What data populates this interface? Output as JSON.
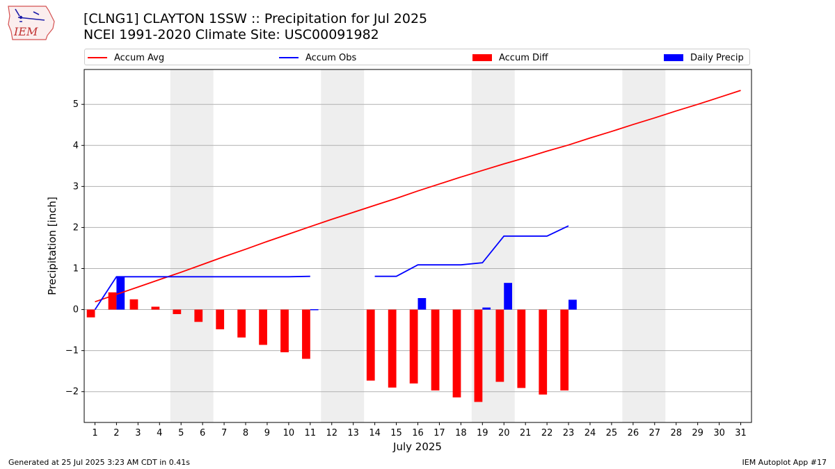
{
  "header": {
    "logo_text": "IEM",
    "title_line1": "[CLNG1] CLAYTON 1SSW :: Precipitation for Jul 2025",
    "title_line2": "NCEI 1991-2020 Climate Site: USC00091982"
  },
  "footer": {
    "left": "Generated at 25 Jul 2025 3:23 AM CDT in 0.41s",
    "right": "IEM Autoplot App #17"
  },
  "colors": {
    "accum_avg": "#ff0000",
    "accum_obs": "#0000ff",
    "accum_diff": "#ff0000",
    "daily_precip": "#0000ff",
    "weekend_shade": "#eeeeee",
    "grid": "#b0b0b0"
  },
  "chart_data": {
    "type": "bar",
    "xlabel": "July 2025",
    "ylabel": "Precipitation [inch]",
    "xlim": [
      0.5,
      31.5
    ],
    "ylim": [
      -2.75,
      5.85
    ],
    "yticks": [
      5,
      4,
      3,
      2,
      1,
      0,
      -1,
      -2
    ],
    "ytick_labels": [
      "5",
      "4",
      "3",
      "2",
      "1",
      "0",
      "−1",
      "−2"
    ],
    "grid": "horizontal",
    "legend": {
      "placement": "top",
      "entries": [
        "Accum Avg",
        "Accum Obs",
        "Accum Diff",
        "Daily Precip"
      ]
    },
    "x": [
      1,
      2,
      3,
      4,
      5,
      6,
      7,
      8,
      9,
      10,
      11,
      12,
      13,
      14,
      15,
      16,
      17,
      18,
      19,
      20,
      21,
      22,
      23,
      24,
      25,
      26,
      27,
      28,
      29,
      30,
      31
    ],
    "x_tick_labels": [
      "1",
      "2",
      "3",
      "4",
      "5",
      "6",
      "7",
      "8",
      "9",
      "10",
      "11",
      "12",
      "13",
      "14",
      "15",
      "16",
      "17",
      "18",
      "19",
      "20",
      "21",
      "22",
      "23",
      "24",
      "25",
      "26",
      "27",
      "28",
      "29",
      "30",
      "31"
    ],
    "weekend_days": [
      [
        5,
        6
      ],
      [
        12,
        13
      ],
      [
        19,
        20
      ],
      [
        26,
        27
      ]
    ],
    "series": [
      {
        "name": "Accum Avg",
        "type": "line",
        "values": [
          0.19,
          0.37,
          0.55,
          0.73,
          0.91,
          1.1,
          1.29,
          1.47,
          1.66,
          1.84,
          2.02,
          2.2,
          2.37,
          2.54,
          2.71,
          2.89,
          3.06,
          3.23,
          3.39,
          3.55,
          3.7,
          3.86,
          4.01,
          4.18,
          4.34,
          4.51,
          4.67,
          4.84,
          5.0,
          5.17,
          5.34
        ]
      },
      {
        "name": "Accum Obs",
        "type": "line",
        "values": [
          0.0,
          0.8,
          0.8,
          0.8,
          0.8,
          0.8,
          0.8,
          0.8,
          0.8,
          0.8,
          0.81,
          null,
          null,
          0.81,
          0.81,
          1.09,
          1.09,
          1.09,
          1.14,
          1.79,
          1.79,
          1.79,
          2.04,
          null,
          null,
          null,
          null,
          null,
          null,
          null,
          null
        ]
      },
      {
        "name": "Accum Diff",
        "type": "bar",
        "values": [
          -0.19,
          0.42,
          0.25,
          0.07,
          -0.11,
          -0.3,
          -0.48,
          -0.68,
          -0.86,
          -1.04,
          -1.2,
          null,
          null,
          -1.73,
          -1.9,
          -1.8,
          -1.97,
          -2.14,
          -2.25,
          -1.76,
          -1.91,
          -2.07,
          -1.97,
          null,
          null,
          null,
          null,
          null,
          null,
          null,
          null
        ]
      },
      {
        "name": "Daily Precip",
        "type": "bar",
        "values": [
          0,
          0.8,
          0,
          0,
          0,
          0,
          0,
          0,
          0,
          0,
          0.01,
          null,
          null,
          0,
          0,
          0.28,
          0,
          0,
          0.05,
          0.65,
          0,
          0,
          0.24,
          null,
          null,
          null,
          null,
          null,
          null,
          null,
          null
        ]
      }
    ]
  }
}
